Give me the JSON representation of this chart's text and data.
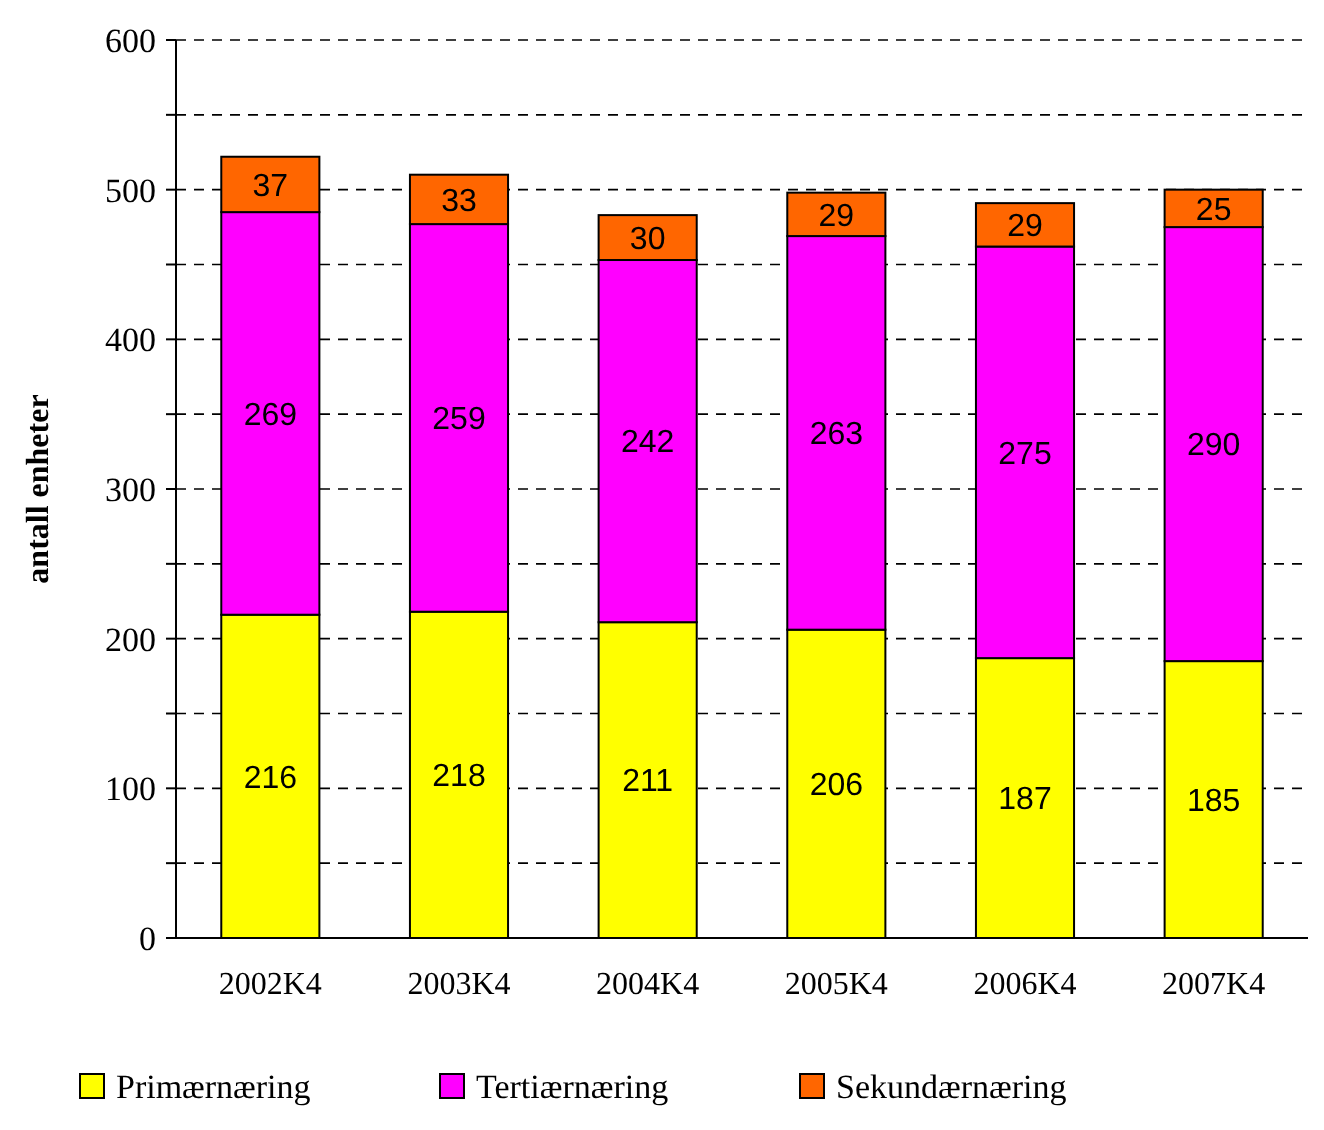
{
  "chart_data": {
    "type": "bar",
    "stacked": true,
    "ylabel": "antall enheter",
    "categories": [
      "2002K4",
      "2003K4",
      "2004K4",
      "2005K4",
      "2006K4",
      "2007K4"
    ],
    "series": [
      {
        "name": "Primærnæring",
        "color": "#ffff00",
        "values": [
          216,
          218,
          211,
          206,
          187,
          185
        ]
      },
      {
        "name": "Tertiærnæring",
        "color": "#ff00ff",
        "values": [
          269,
          259,
          242,
          263,
          275,
          290
        ]
      },
      {
        "name": "Sekundærnæring",
        "color": "#ff6600",
        "values": [
          37,
          33,
          30,
          29,
          29,
          25
        ]
      }
    ],
    "ylim": [
      0,
      600
    ],
    "yticks": [
      0,
      {
        "value": 50,
        "label": null
      },
      100,
      {
        "value": 150,
        "label": null
      },
      200,
      {
        "value": 250,
        "label": null
      },
      300,
      {
        "value": 350,
        "label": null
      },
      400,
      {
        "value": 450,
        "label": null
      },
      500,
      {
        "value": 550,
        "label": null
      },
      600
    ],
    "grid": "y",
    "data_labels": true,
    "legend": "bottom"
  }
}
